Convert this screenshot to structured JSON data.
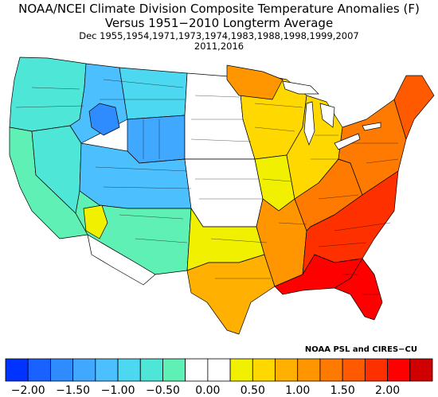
{
  "title": {
    "line1": "NOAA/NCEI Climate Division Composite Temperature Anomalies (F)",
    "line2": "Versus 1951−2010 Longterm Average",
    "line3": "Dec   1955,1954,1971,1973,1974,1983,1988,1998,1999,2007",
    "line4": "2011,2016"
  },
  "credit": "NOAA PSL and CIRES−CU",
  "legend": {
    "colors": [
      "#0033ff",
      "#1a62ff",
      "#2f8cff",
      "#40a8ff",
      "#4cc0ff",
      "#4cd8f0",
      "#4ee6d6",
      "#5ef0b4",
      "#ffffff",
      "#ffffff",
      "#f0f000",
      "#ffd800",
      "#ffb000",
      "#ff9600",
      "#ff7a00",
      "#ff5a00",
      "#ff3000",
      "#ff0000",
      "#d00000"
    ],
    "tick_labels": [
      "−2.00",
      "−1.50",
      "−1.00",
      "−0.50",
      "0.00",
      "0.50",
      "1.00",
      "1.50",
      "2.00"
    ]
  },
  "regions": [
    {
      "name": "pacific-northwest",
      "color": "#4ee6d6"
    },
    {
      "name": "west-coast",
      "color": "#5ef0b4"
    },
    {
      "name": "great-basin",
      "color": "#4ee6d6"
    },
    {
      "name": "idaho-montana-west",
      "color": "#4cc0ff"
    },
    {
      "name": "southwest-montana",
      "color": "#2f8cff"
    },
    {
      "name": "montana-east",
      "color": "#4cd8f0"
    },
    {
      "name": "wyoming",
      "color": "#40a8ff"
    },
    {
      "name": "utah-colorado",
      "color": "#4cc0ff"
    },
    {
      "name": "arizona-new-mexico",
      "color": "#5ef0b4"
    },
    {
      "name": "southern-arizona",
      "color": "#ffffff"
    },
    {
      "name": "arizona-warm-pocket",
      "color": "#f0f000"
    },
    {
      "name": "dakotas-nebraska",
      "color": "#ffffff"
    },
    {
      "name": "kansas-oklahoma",
      "color": "#ffffff"
    },
    {
      "name": "north-texas",
      "color": "#f0f000"
    },
    {
      "name": "south-texas",
      "color": "#ffb000"
    },
    {
      "name": "minnesota-wisconsin",
      "color": "#ffd800"
    },
    {
      "name": "minnesota-north",
      "color": "#ff9600"
    },
    {
      "name": "iowa-missouri",
      "color": "#f0f000"
    },
    {
      "name": "illinois-michigan",
      "color": "#ffd800"
    },
    {
      "name": "arkansas-louisiana",
      "color": "#ff9600"
    },
    {
      "name": "ohio-valley",
      "color": "#ff7a00"
    },
    {
      "name": "northeast",
      "color": "#ff7a00"
    },
    {
      "name": "maine",
      "color": "#ff5a00"
    },
    {
      "name": "southeast",
      "color": "#ff3000"
    },
    {
      "name": "gulf-coast",
      "color": "#ff0000"
    },
    {
      "name": "florida",
      "color": "#ff0000"
    }
  ]
}
